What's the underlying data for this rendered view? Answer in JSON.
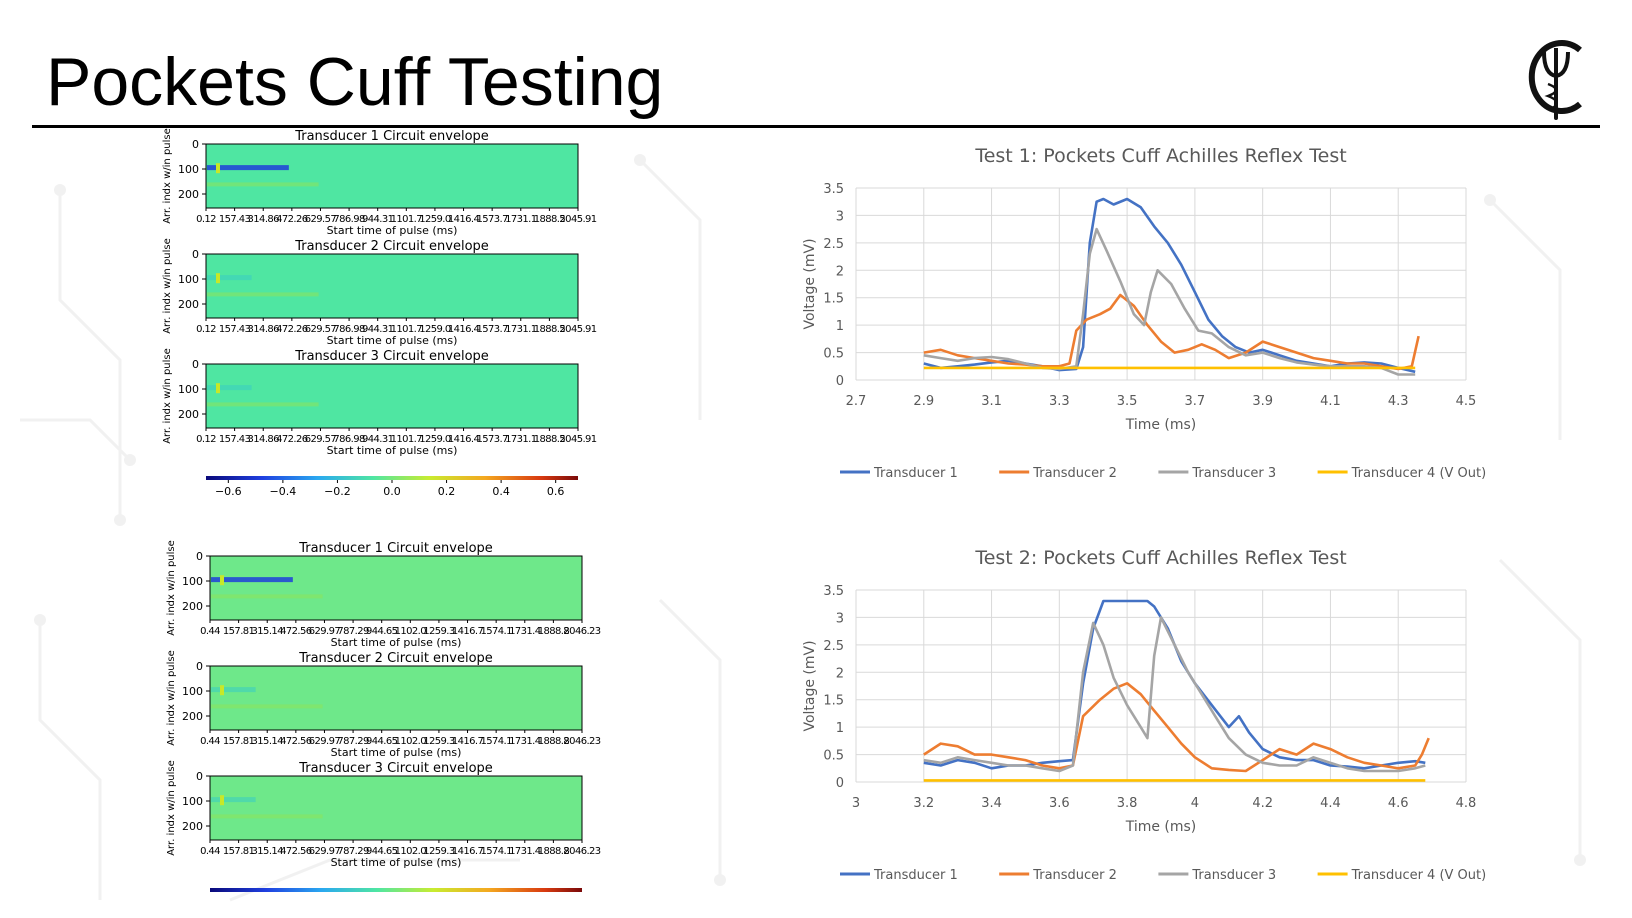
{
  "slide": {
    "title": "Pockets Cuff Testing",
    "logo_icon": "caduceus-logo-icon"
  },
  "heatmaps": {
    "ylabel": "Arr. indx w/in pulse",
    "xlabel": "Start time of pulse (ms)",
    "yticks": [
      "0",
      "100",
      "200"
    ],
    "colorbar_ticks": [
      "−0.6",
      "−0.4",
      "−0.2",
      "0.0",
      "0.2",
      "0.4",
      "0.6"
    ],
    "colors": {
      "background": "#4fe6a2",
      "background_test2": "#6ee88a",
      "low": "#1e3fd9",
      "high": "#c8e828"
    },
    "test1": {
      "xticks": [
        "0.12",
        "157.43",
        "314.86",
        "472.26",
        "629.57",
        "786.98",
        "944.31",
        "1101.7",
        "1259.0",
        "1416.4",
        "1573.7",
        "1731.1",
        "1888.5",
        "2045.91"
      ],
      "panels": [
        {
          "title": "Transducer 1 Circuit envelope"
        },
        {
          "title": "Transducer 2 Circuit envelope"
        },
        {
          "title": "Transducer 3 Circuit envelope"
        }
      ]
    },
    "test2": {
      "xticks": [
        "0.44",
        "157.81",
        "315.14",
        "472.56",
        "629.97",
        "787.29",
        "944.65",
        "1102.0",
        "1259.3",
        "1416.7",
        "1574.1",
        "1731.4",
        "1888.8",
        "2046.23"
      ],
      "panels": [
        {
          "title": "Transducer 1 Circuit envelope"
        },
        {
          "title": "Transducer 2 Circuit envelope"
        },
        {
          "title": "Transducer 3 Circuit envelope"
        }
      ]
    }
  },
  "chart_data": [
    {
      "type": "line",
      "title": "Test 1: Pockets Cuff Achilles Reflex Test",
      "xlabel": "Time (ms)",
      "ylabel": "Voltage (mV)",
      "xlim": [
        2.7,
        4.5
      ],
      "ylim": [
        0,
        3.5
      ],
      "xticks": [
        "2.7",
        "2.9",
        "3.1",
        "3.3",
        "3.5",
        "3.7",
        "3.9",
        "4.1",
        "4.3",
        "4.5"
      ],
      "yticks": [
        "0",
        "0.5",
        "1",
        "1.5",
        "2",
        "2.5",
        "3",
        "3.5"
      ],
      "grid": true,
      "legend": "bottom",
      "series": [
        {
          "name": "Transducer 1",
          "color": "#4472c4",
          "points": [
            [
              2.9,
              0.3
            ],
            [
              2.95,
              0.22
            ],
            [
              3.0,
              0.25
            ],
            [
              3.05,
              0.28
            ],
            [
              3.1,
              0.32
            ],
            [
              3.15,
              0.35
            ],
            [
              3.2,
              0.3
            ],
            [
              3.25,
              0.25
            ],
            [
              3.3,
              0.18
            ],
            [
              3.35,
              0.2
            ],
            [
              3.37,
              0.6
            ],
            [
              3.39,
              2.5
            ],
            [
              3.41,
              3.25
            ],
            [
              3.43,
              3.3
            ],
            [
              3.46,
              3.2
            ],
            [
              3.5,
              3.3
            ],
            [
              3.54,
              3.15
            ],
            [
              3.58,
              2.8
            ],
            [
              3.62,
              2.5
            ],
            [
              3.66,
              2.1
            ],
            [
              3.7,
              1.6
            ],
            [
              3.74,
              1.1
            ],
            [
              3.78,
              0.8
            ],
            [
              3.82,
              0.6
            ],
            [
              3.86,
              0.5
            ],
            [
              3.9,
              0.55
            ],
            [
              3.95,
              0.45
            ],
            [
              4.0,
              0.35
            ],
            [
              4.05,
              0.3
            ],
            [
              4.1,
              0.25
            ],
            [
              4.15,
              0.3
            ],
            [
              4.2,
              0.32
            ],
            [
              4.25,
              0.3
            ],
            [
              4.3,
              0.22
            ],
            [
              4.35,
              0.15
            ]
          ]
        },
        {
          "name": "Transducer 2",
          "color": "#ed7d31",
          "points": [
            [
              2.9,
              0.5
            ],
            [
              2.95,
              0.55
            ],
            [
              3.0,
              0.45
            ],
            [
              3.05,
              0.4
            ],
            [
              3.1,
              0.35
            ],
            [
              3.15,
              0.3
            ],
            [
              3.2,
              0.28
            ],
            [
              3.25,
              0.25
            ],
            [
              3.3,
              0.25
            ],
            [
              3.33,
              0.3
            ],
            [
              3.35,
              0.9
            ],
            [
              3.38,
              1.1
            ],
            [
              3.42,
              1.2
            ],
            [
              3.45,
              1.3
            ],
            [
              3.48,
              1.55
            ],
            [
              3.52,
              1.35
            ],
            [
              3.56,
              1.0
            ],
            [
              3.6,
              0.7
            ],
            [
              3.64,
              0.5
            ],
            [
              3.68,
              0.55
            ],
            [
              3.72,
              0.65
            ],
            [
              3.76,
              0.55
            ],
            [
              3.8,
              0.4
            ],
            [
              3.85,
              0.5
            ],
            [
              3.9,
              0.7
            ],
            [
              3.95,
              0.6
            ],
            [
              4.0,
              0.5
            ],
            [
              4.05,
              0.4
            ],
            [
              4.1,
              0.35
            ],
            [
              4.15,
              0.3
            ],
            [
              4.2,
              0.3
            ],
            [
              4.25,
              0.25
            ],
            [
              4.3,
              0.2
            ],
            [
              4.34,
              0.25
            ],
            [
              4.36,
              0.8
            ]
          ]
        },
        {
          "name": "Transducer 3",
          "color": "#a5a5a5",
          "points": [
            [
              2.9,
              0.45
            ],
            [
              2.95,
              0.4
            ],
            [
              3.0,
              0.35
            ],
            [
              3.05,
              0.4
            ],
            [
              3.1,
              0.42
            ],
            [
              3.15,
              0.38
            ],
            [
              3.2,
              0.3
            ],
            [
              3.25,
              0.22
            ],
            [
              3.3,
              0.2
            ],
            [
              3.35,
              0.25
            ],
            [
              3.37,
              1.2
            ],
            [
              3.39,
              2.3
            ],
            [
              3.41,
              2.75
            ],
            [
              3.44,
              2.35
            ],
            [
              3.48,
              1.8
            ],
            [
              3.52,
              1.2
            ],
            [
              3.55,
              1.0
            ],
            [
              3.57,
              1.6
            ],
            [
              3.59,
              2.0
            ],
            [
              3.63,
              1.75
            ],
            [
              3.67,
              1.3
            ],
            [
              3.71,
              0.9
            ],
            [
              3.75,
              0.85
            ],
            [
              3.8,
              0.6
            ],
            [
              3.85,
              0.45
            ],
            [
              3.9,
              0.5
            ],
            [
              3.95,
              0.4
            ],
            [
              4.0,
              0.32
            ],
            [
              4.05,
              0.28
            ],
            [
              4.1,
              0.25
            ],
            [
              4.15,
              0.25
            ],
            [
              4.2,
              0.25
            ],
            [
              4.25,
              0.22
            ],
            [
              4.3,
              0.1
            ],
            [
              4.35,
              0.1
            ]
          ]
        },
        {
          "name": "Transducer 4 (V Out)",
          "color": "#ffc000",
          "points": [
            [
              2.9,
              0.22
            ],
            [
              4.35,
              0.22
            ]
          ]
        }
      ]
    },
    {
      "type": "line",
      "title": "Test 2: Pockets Cuff Achilles Reflex Test",
      "xlabel": "Time (ms)",
      "ylabel": "Voltage (mV)",
      "xlim": [
        3,
        4.8
      ],
      "ylim": [
        0,
        3.5
      ],
      "xticks": [
        "3",
        "3.2",
        "3.4",
        "3.6",
        "3.8",
        "4",
        "4.2",
        "4.4",
        "4.6",
        "4.8"
      ],
      "yticks": [
        "0",
        "0.5",
        "1",
        "1.5",
        "2",
        "2.5",
        "3",
        "3.5"
      ],
      "grid": true,
      "legend": "bottom",
      "series": [
        {
          "name": "Transducer 1",
          "color": "#4472c4",
          "points": [
            [
              3.2,
              0.35
            ],
            [
              3.25,
              0.3
            ],
            [
              3.3,
              0.4
            ],
            [
              3.35,
              0.35
            ],
            [
              3.4,
              0.25
            ],
            [
              3.45,
              0.3
            ],
            [
              3.5,
              0.3
            ],
            [
              3.55,
              0.35
            ],
            [
              3.6,
              0.38
            ],
            [
              3.64,
              0.4
            ],
            [
              3.67,
              1.8
            ],
            [
              3.7,
              2.8
            ],
            [
              3.73,
              3.3
            ],
            [
              3.8,
              3.3
            ],
            [
              3.86,
              3.3
            ],
            [
              3.88,
              3.2
            ],
            [
              3.92,
              2.8
            ],
            [
              3.96,
              2.2
            ],
            [
              4.0,
              1.8
            ],
            [
              4.05,
              1.4
            ],
            [
              4.1,
              1.0
            ],
            [
              4.13,
              1.2
            ],
            [
              4.16,
              0.9
            ],
            [
              4.2,
              0.6
            ],
            [
              4.25,
              0.45
            ],
            [
              4.3,
              0.4
            ],
            [
              4.35,
              0.4
            ],
            [
              4.4,
              0.3
            ],
            [
              4.45,
              0.28
            ],
            [
              4.5,
              0.25
            ],
            [
              4.55,
              0.3
            ],
            [
              4.6,
              0.35
            ],
            [
              4.65,
              0.38
            ],
            [
              4.68,
              0.35
            ]
          ]
        },
        {
          "name": "Transducer 2",
          "color": "#ed7d31",
          "points": [
            [
              3.2,
              0.5
            ],
            [
              3.25,
              0.7
            ],
            [
              3.3,
              0.65
            ],
            [
              3.35,
              0.5
            ],
            [
              3.4,
              0.5
            ],
            [
              3.45,
              0.45
            ],
            [
              3.5,
              0.4
            ],
            [
              3.55,
              0.3
            ],
            [
              3.6,
              0.25
            ],
            [
              3.64,
              0.3
            ],
            [
              3.67,
              1.2
            ],
            [
              3.72,
              1.5
            ],
            [
              3.76,
              1.7
            ],
            [
              3.8,
              1.8
            ],
            [
              3.84,
              1.6
            ],
            [
              3.88,
              1.3
            ],
            [
              3.92,
              1.0
            ],
            [
              3.96,
              0.7
            ],
            [
              4.0,
              0.45
            ],
            [
              4.05,
              0.25
            ],
            [
              4.1,
              0.22
            ],
            [
              4.15,
              0.2
            ],
            [
              4.2,
              0.4
            ],
            [
              4.25,
              0.6
            ],
            [
              4.3,
              0.5
            ],
            [
              4.35,
              0.7
            ],
            [
              4.4,
              0.6
            ],
            [
              4.45,
              0.45
            ],
            [
              4.5,
              0.35
            ],
            [
              4.55,
              0.3
            ],
            [
              4.6,
              0.25
            ],
            [
              4.65,
              0.3
            ],
            [
              4.67,
              0.5
            ],
            [
              4.69,
              0.8
            ]
          ]
        },
        {
          "name": "Transducer 3",
          "color": "#a5a5a5",
          "points": [
            [
              3.2,
              0.4
            ],
            [
              3.25,
              0.35
            ],
            [
              3.3,
              0.45
            ],
            [
              3.35,
              0.4
            ],
            [
              3.4,
              0.35
            ],
            [
              3.45,
              0.3
            ],
            [
              3.5,
              0.3
            ],
            [
              3.55,
              0.25
            ],
            [
              3.6,
              0.2
            ],
            [
              3.64,
              0.3
            ],
            [
              3.67,
              2.0
            ],
            [
              3.7,
              2.9
            ],
            [
              3.73,
              2.5
            ],
            [
              3.76,
              1.9
            ],
            [
              3.8,
              1.4
            ],
            [
              3.84,
              1.0
            ],
            [
              3.86,
              0.8
            ],
            [
              3.88,
              2.3
            ],
            [
              3.9,
              3.0
            ],
            [
              3.94,
              2.5
            ],
            [
              3.98,
              2.0
            ],
            [
              4.02,
              1.6
            ],
            [
              4.06,
              1.2
            ],
            [
              4.1,
              0.8
            ],
            [
              4.15,
              0.5
            ],
            [
              4.2,
              0.35
            ],
            [
              4.25,
              0.3
            ],
            [
              4.3,
              0.3
            ],
            [
              4.35,
              0.45
            ],
            [
              4.4,
              0.35
            ],
            [
              4.45,
              0.25
            ],
            [
              4.5,
              0.2
            ],
            [
              4.55,
              0.2
            ],
            [
              4.6,
              0.2
            ],
            [
              4.65,
              0.25
            ],
            [
              4.68,
              0.3
            ]
          ]
        },
        {
          "name": "Transducer 4 (V Out)",
          "color": "#ffc000",
          "points": [
            [
              3.2,
              0.03
            ],
            [
              4.68,
              0.03
            ]
          ]
        }
      ]
    }
  ]
}
